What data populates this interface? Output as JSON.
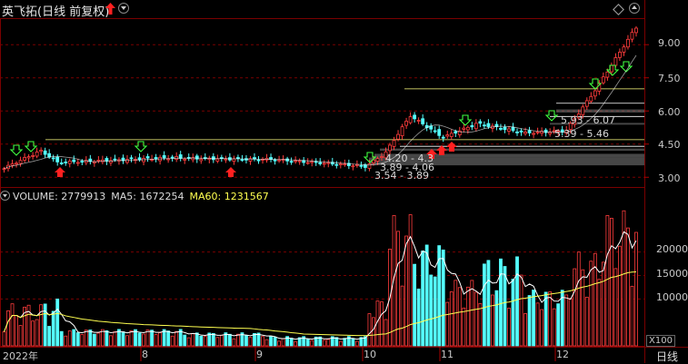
{
  "header": {
    "title": "英飞拓(日线 前复权)"
  },
  "price_axis": {
    "ticks": [
      "9.00",
      "7.50",
      "6.00",
      "4.50",
      "3.00"
    ]
  },
  "volume_panel": {
    "volume_label": "VOLUME: 2779913",
    "ma5_label": "MA5: 1672254",
    "ma60_label": "MA60: 1231567",
    "ticks": [
      "20000",
      "15000",
      "10000"
    ],
    "unit": "X100"
  },
  "date_axis": {
    "labels": [
      "2022年",
      "8",
      "9",
      "10",
      "11",
      "12"
    ],
    "period": "日线"
  },
  "price_boxes": {
    "labels": [
      "5.93 - 6.07",
      "5.39 - 5.46",
      "4.20 - 4.3",
      "3.89 - 4.06",
      "3.54 - 3.89"
    ]
  },
  "colors": {
    "up": "#ff3c3c",
    "down": "#54ffff",
    "ma5": "#ffffff",
    "ma60": "#ffff50",
    "grid": "#7a0000"
  },
  "icons": {
    "title_arrow": "arrow-up-icon",
    "dropdown": "chevron-down-icon",
    "diamond": "diamond-icon",
    "collapse": "chevron-up-icon"
  }
}
